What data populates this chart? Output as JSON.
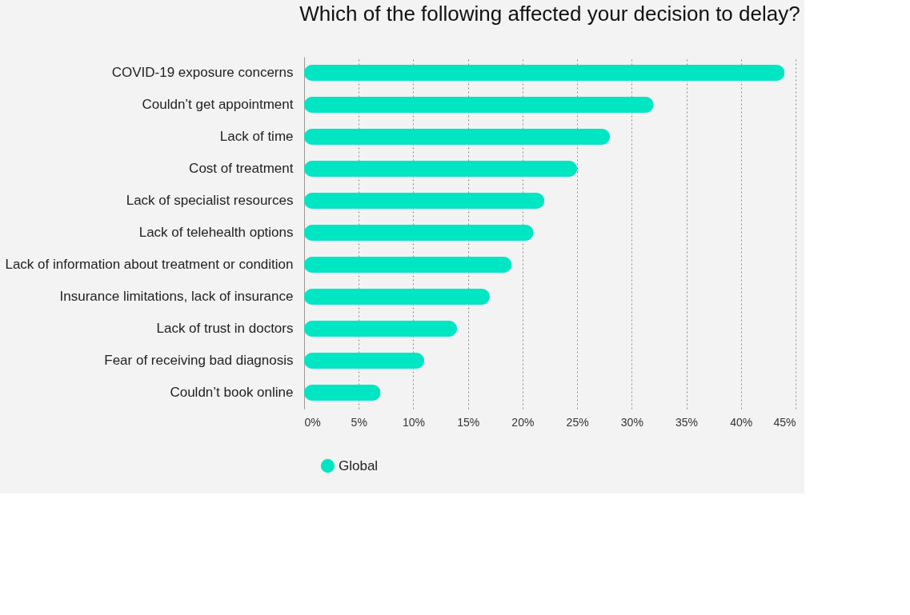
{
  "chart_data": {
    "type": "bar",
    "orientation": "horizontal",
    "title": "Which of the following affected your decision to delay?",
    "categories": [
      "COVID-19 exposure concerns",
      "Couldn’t get appointment",
      "Lack of time",
      "Cost of treatment",
      "Lack of specialist resources",
      "Lack of telehealth options",
      "Lack of information about treatment or condition",
      "Insurance limitations, lack of insurance",
      "Lack of trust in doctors",
      "Fear of receiving bad diagnosis",
      "Couldn’t book online"
    ],
    "series": [
      {
        "name": "Global",
        "color": "#00e6c3",
        "values": [
          44,
          32,
          28,
          25,
          22,
          21,
          19,
          17,
          14,
          11,
          7
        ]
      }
    ],
    "xlim": [
      0,
      45
    ],
    "xticks": [
      {
        "value": 0,
        "label": "0%"
      },
      {
        "value": 5,
        "label": "5%"
      },
      {
        "value": 10,
        "label": "10%"
      },
      {
        "value": 15,
        "label": "15%"
      },
      {
        "value": 20,
        "label": "20%"
      },
      {
        "value": 25,
        "label": "25%"
      },
      {
        "value": 30,
        "label": "30%"
      },
      {
        "value": 35,
        "label": "35%"
      },
      {
        "value": 40,
        "label": "40%"
      },
      {
        "value": 45,
        "label": "45%"
      }
    ],
    "grid": "x",
    "legend": "bottom"
  }
}
